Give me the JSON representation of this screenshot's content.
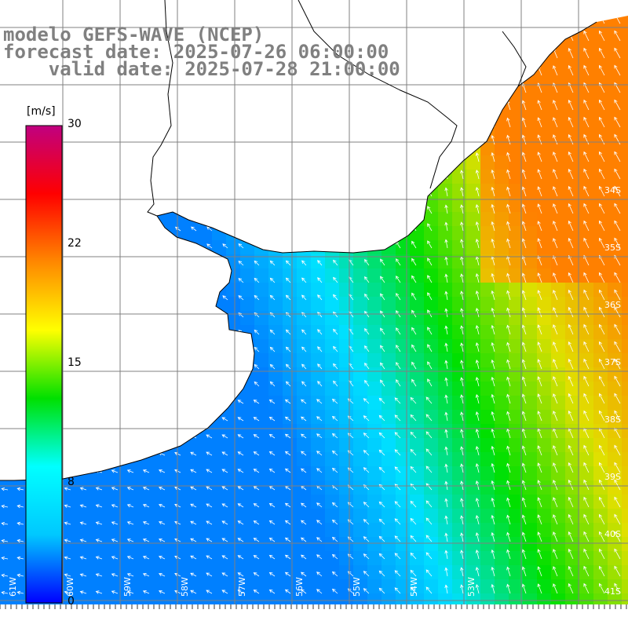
{
  "title": {
    "line1": "modelo GEFS-WAVE (NCEP)",
    "line2": "forecast date: 2025-07-26 06:00:00",
    "line3": "    valid date: 2025-07-28 21:00:00",
    "color": "#808080"
  },
  "colorbar": {
    "unit": "[m/s]",
    "ticks": [
      "30",
      "22",
      "15",
      "8",
      "0"
    ],
    "stops": [
      "#0000ff",
      "#00c8ff",
      "#00ffff",
      "#00e000",
      "#ffff00",
      "#ff8800",
      "#ff0000",
      "#c00080"
    ]
  },
  "map": {
    "lat_labels": [
      "34S",
      "35S",
      "36S",
      "37S",
      "38S",
      "39S",
      "40S",
      "41S"
    ],
    "lon_labels": [
      "61W",
      "60W",
      "59W",
      "58W",
      "57W",
      "56W",
      "55W",
      "54W",
      "53W"
    ],
    "ocean_colors": {
      "calm": "#0080ff",
      "mid": "#00e0ff",
      "fresh": "#00e000",
      "strong": "#e0e000",
      "max": "#ff8000"
    },
    "land_color": "#ffffff",
    "grid_color": "#808080",
    "coast_color": "#000000",
    "arrow_color": "#ffffff"
  }
}
